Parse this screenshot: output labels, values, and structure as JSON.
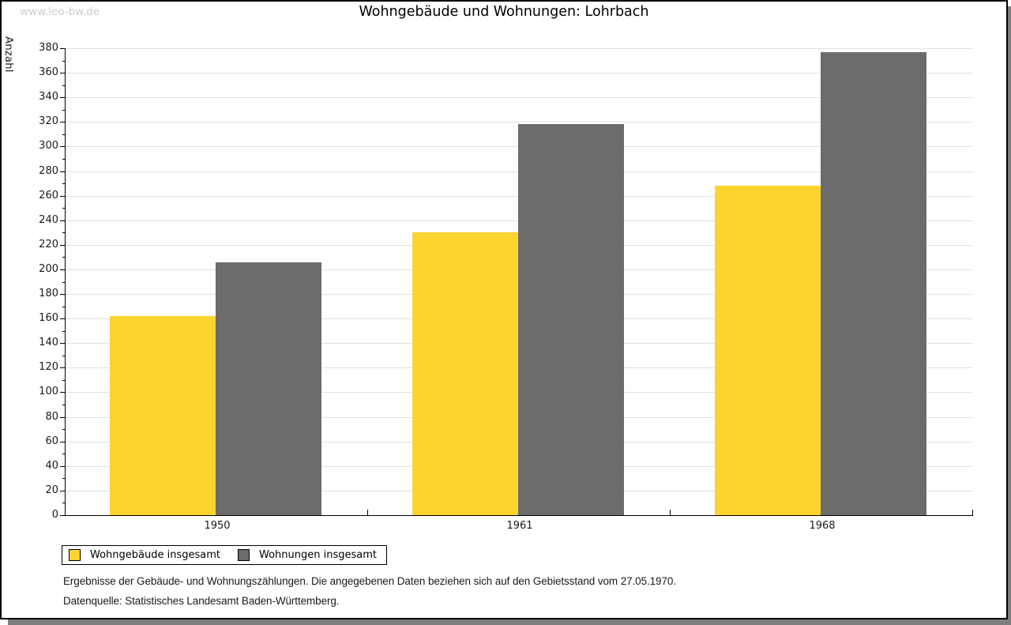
{
  "watermark": "www.leo-bw.de",
  "header": {
    "title": "Wohngebäude und Wohnungen: Lohrbach"
  },
  "chart_data": {
    "type": "bar",
    "title": "Wohngebäude und Wohnungen: Lohrbach",
    "ylabel": "Anzahl",
    "xlabel": "",
    "categories": [
      "1950",
      "1961",
      "1968"
    ],
    "series": [
      {
        "name": "Wohngebäude insgesamt",
        "color": "#FCD42F",
        "values": [
          162,
          230,
          268
        ]
      },
      {
        "name": "Wohnungen insgesamt",
        "color": "#6C6C6C",
        "values": [
          206,
          318,
          377
        ]
      }
    ],
    "ylim": [
      0,
      380
    ],
    "y_major_step": 20,
    "y_minor_step": 10,
    "grid": true,
    "grid_color": "#E1E1E1",
    "legend_position": "bottom-left"
  },
  "legend": {
    "items": [
      {
        "label": "Wohngebäude insgesamt",
        "color": "#FCD42F"
      },
      {
        "label": "Wohnungen insgesamt",
        "color": "#6C6C6C"
      }
    ]
  },
  "footnotes": {
    "line1": "Ergebnisse der Gebäude- und Wohnungszählungen. Die angegebenen Daten beziehen sich auf den Gebietsstand vom 27.05.1970.",
    "line2": "Datenquelle: Statistisches Landesamt Baden-Württemberg."
  }
}
